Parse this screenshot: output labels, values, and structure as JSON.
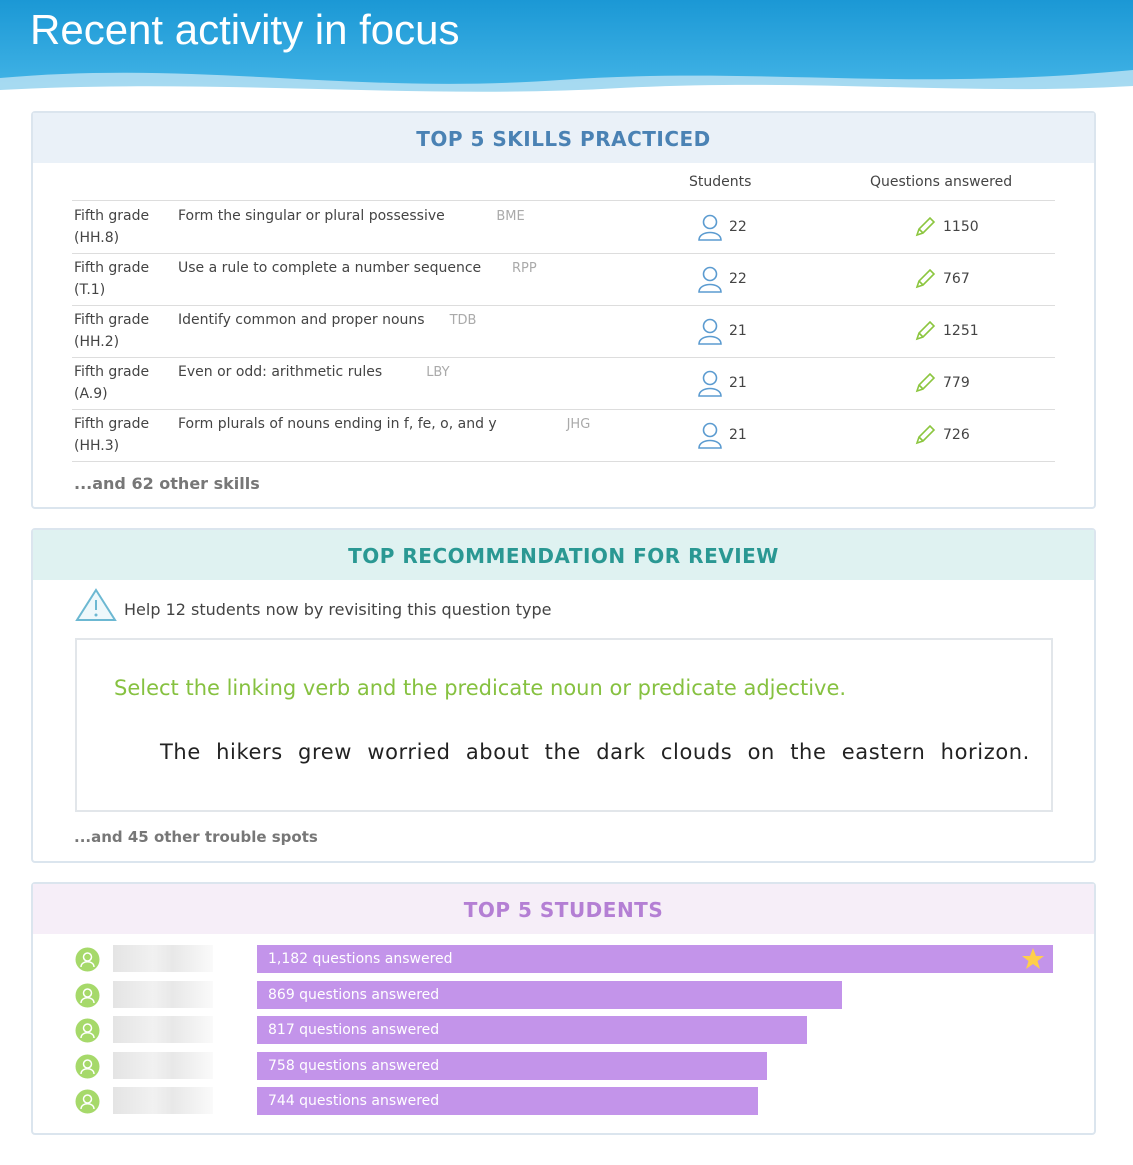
{
  "header": {
    "title": "Recent activity in focus"
  },
  "skills": {
    "title": "TOP 5 SKILLS PRACTICED",
    "columns": [
      "Students",
      "Questions answered"
    ],
    "rows": [
      {
        "grade": "Fifth grade",
        "code": "(HH.8)",
        "name": "Form the singular or plural possessive",
        "id": "BME",
        "students": 22,
        "questions": 1150
      },
      {
        "grade": "Fifth grade",
        "code": "(T.1)",
        "name": "Use a rule to complete a number sequence",
        "id": "RPP",
        "students": 22,
        "questions": 767
      },
      {
        "grade": "Fifth grade",
        "code": "(HH.2)",
        "name": "Identify common and proper nouns",
        "id": "TDB",
        "students": 21,
        "questions": 1251
      },
      {
        "grade": "Fifth grade",
        "code": "(A.9)",
        "name": "Even or odd: arithmetic rules",
        "id": "LBY",
        "students": 21,
        "questions": 779
      },
      {
        "grade": "Fifth grade",
        "code": "(HH.3)",
        "name": "Form plurals of nouns ending in f, fe, o, and y",
        "id": "JHG",
        "students": 21,
        "questions": 726
      }
    ],
    "footer": "...and 62 other skills"
  },
  "review": {
    "title": "TOP RECOMMENDATION FOR REVIEW",
    "prompt": "Help 12 students now by revisiting this question type",
    "instruction": "Select the linking verb and the predicate noun or predicate adjective.",
    "sentence": "The hikers grew worried about the dark clouds on the eastern horizon.",
    "footer": "...and 45 other trouble spots"
  },
  "students": {
    "title": "TOP 5 STUDENTS",
    "bars": [
      {
        "value": 1182,
        "label": "1,182 questions answered"
      },
      {
        "value": 869,
        "label": "869 questions answered"
      },
      {
        "value": 817,
        "label": "817 questions answered"
      },
      {
        "value": 758,
        "label": "758 questions answered"
      },
      {
        "value": 744,
        "label": "744 questions answered"
      }
    ]
  }
}
